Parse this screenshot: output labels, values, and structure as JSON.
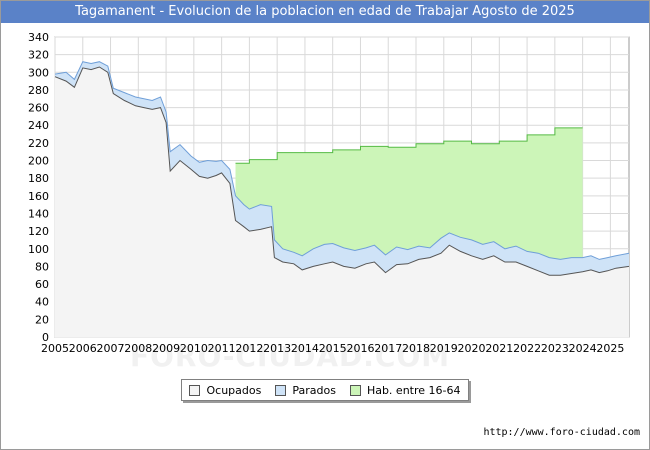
{
  "title": "Tagamanent - Evolucion de la poblacion en edad de Trabajar Agosto de 2025",
  "source": "http://www.foro-ciudad.com",
  "watermark": "FORO-CIUDAD.COM",
  "colors": {
    "title_bg": "#5a82c8",
    "ocupados_fill": "#f4f4f4",
    "ocupados_line": "#555555",
    "parados_fill": "#cfe3f7",
    "parados_line": "#6f9fd8",
    "hab_fill": "#ccf5b8",
    "hab_line": "#55bb44",
    "grid": "#d9d9d9"
  },
  "legend": {
    "ocupados": "Ocupados",
    "parados": "Parados",
    "hab": "Hab. entre 16-64"
  },
  "chart_data": {
    "type": "area",
    "title": "Tagamanent - Evolucion de la poblacion en edad de Trabajar Agosto de 2025",
    "ylim": [
      0,
      340
    ],
    "xlim": [
      2005,
      2025.67
    ],
    "y_ticks": [
      0,
      20,
      40,
      60,
      80,
      100,
      120,
      140,
      160,
      180,
      200,
      220,
      240,
      260,
      280,
      300,
      320,
      340
    ],
    "x_ticks": [
      "2005",
      "2006",
      "2007",
      "2008",
      "2009",
      "2010",
      "2011",
      "2012",
      "2013",
      "2014",
      "2015",
      "2016",
      "2017",
      "2018",
      "2019",
      "2020",
      "2021",
      "2022",
      "2023",
      "2024",
      "2025"
    ],
    "grid": true,
    "legend_position": "bottom",
    "series": [
      {
        "name": "Hab. entre 16-64",
        "x": [
          2011.5,
          2012,
          2013,
          2014,
          2015,
          2016,
          2017,
          2018,
          2019,
          2020,
          2021,
          2022,
          2023,
          2024
        ],
        "values": [
          197,
          201,
          209,
          209,
          212,
          216,
          215,
          219,
          222,
          219,
          222,
          229,
          237,
          237
        ]
      },
      {
        "name": "Parados",
        "x": [
          2005.0,
          2005.4,
          2005.7,
          2006.0,
          2006.3,
          2006.6,
          2006.9,
          2007.1,
          2007.5,
          2007.9,
          2008.2,
          2008.5,
          2008.8,
          2009.0,
          2009.15,
          2009.5,
          2009.9,
          2010.2,
          2010.5,
          2010.8,
          2011.0,
          2011.3,
          2011.5,
          2011.8,
          2012.0,
          2012.4,
          2012.8,
          2012.9,
          2013.2,
          2013.6,
          2013.9,
          2014.3,
          2014.7,
          2015.0,
          2015.4,
          2015.8,
          2016.2,
          2016.5,
          2016.9,
          2017.3,
          2017.7,
          2018.1,
          2018.5,
          2018.9,
          2019.2,
          2019.6,
          2020.0,
          2020.4,
          2020.8,
          2021.2,
          2021.6,
          2022.0,
          2022.4,
          2022.8,
          2023.2,
          2023.6,
          2024.0,
          2024.3,
          2024.6,
          2024.9,
          2025.2,
          2025.67
        ],
        "values": [
          298,
          300,
          292,
          312,
          310,
          312,
          307,
          282,
          277,
          272,
          270,
          268,
          272,
          255,
          210,
          218,
          205,
          198,
          200,
          199,
          200,
          190,
          160,
          150,
          145,
          150,
          148,
          110,
          100,
          96,
          92,
          100,
          105,
          106,
          101,
          98,
          101,
          104,
          93,
          102,
          99,
          103,
          101,
          112,
          118,
          113,
          110,
          105,
          108,
          100,
          103,
          97,
          95,
          90,
          88,
          90,
          90,
          92,
          88,
          90,
          92,
          95
        ]
      },
      {
        "name": "Ocupados",
        "x": [
          2005.0,
          2005.4,
          2005.7,
          2006.0,
          2006.3,
          2006.6,
          2006.9,
          2007.1,
          2007.5,
          2007.9,
          2008.2,
          2008.5,
          2008.8,
          2009.0,
          2009.15,
          2009.5,
          2009.9,
          2010.2,
          2010.5,
          2010.8,
          2011.0,
          2011.3,
          2011.5,
          2011.8,
          2012.0,
          2012.4,
          2012.8,
          2012.9,
          2013.2,
          2013.6,
          2013.9,
          2014.3,
          2014.7,
          2015.0,
          2015.4,
          2015.8,
          2016.2,
          2016.5,
          2016.9,
          2017.3,
          2017.7,
          2018.1,
          2018.5,
          2018.9,
          2019.2,
          2019.6,
          2020.0,
          2020.4,
          2020.8,
          2021.2,
          2021.6,
          2022.0,
          2022.4,
          2022.8,
          2023.2,
          2023.6,
          2024.0,
          2024.3,
          2024.6,
          2024.9,
          2025.2,
          2025.67
        ],
        "values": [
          295,
          290,
          283,
          305,
          303,
          306,
          300,
          276,
          268,
          262,
          260,
          258,
          260,
          243,
          188,
          200,
          190,
          182,
          180,
          183,
          186,
          174,
          132,
          125,
          120,
          122,
          125,
          90,
          85,
          83,
          76,
          80,
          83,
          85,
          80,
          78,
          83,
          85,
          73,
          82,
          83,
          88,
          90,
          95,
          104,
          97,
          92,
          88,
          92,
          85,
          85,
          80,
          75,
          70,
          70,
          72,
          74,
          76,
          73,
          75,
          78,
          80
        ]
      }
    ]
  }
}
